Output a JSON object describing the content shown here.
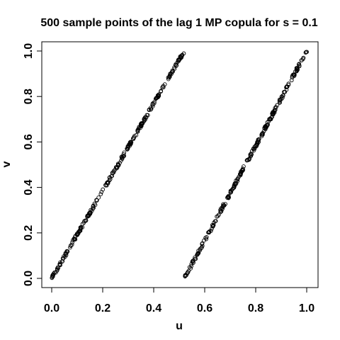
{
  "chart_data": {
    "type": "scatter",
    "title": "500 sample points of the lag 1 MP copula for s = 0.1",
    "xlabel": "u",
    "ylabel": "v",
    "xlim": [
      0,
      1
    ],
    "ylim": [
      0,
      1
    ],
    "x_ticks": [
      "0.0",
      "0.2",
      "0.4",
      "0.6",
      "0.8",
      "1.0"
    ],
    "y_ticks": [
      "0.0",
      "0.2",
      "0.4",
      "0.6",
      "0.8",
      "1.0"
    ],
    "grid": false,
    "legend": "none",
    "n_points": 500,
    "series": [
      {
        "x_range": [
          0.0,
          0.52
        ],
        "y_range": [
          0.0,
          1.0
        ]
      },
      {
        "x_range": [
          0.52,
          1.0
        ],
        "y_range": [
          0.0,
          1.0
        ]
      }
    ],
    "marker": "open-circle",
    "marker_color": "#000000"
  }
}
